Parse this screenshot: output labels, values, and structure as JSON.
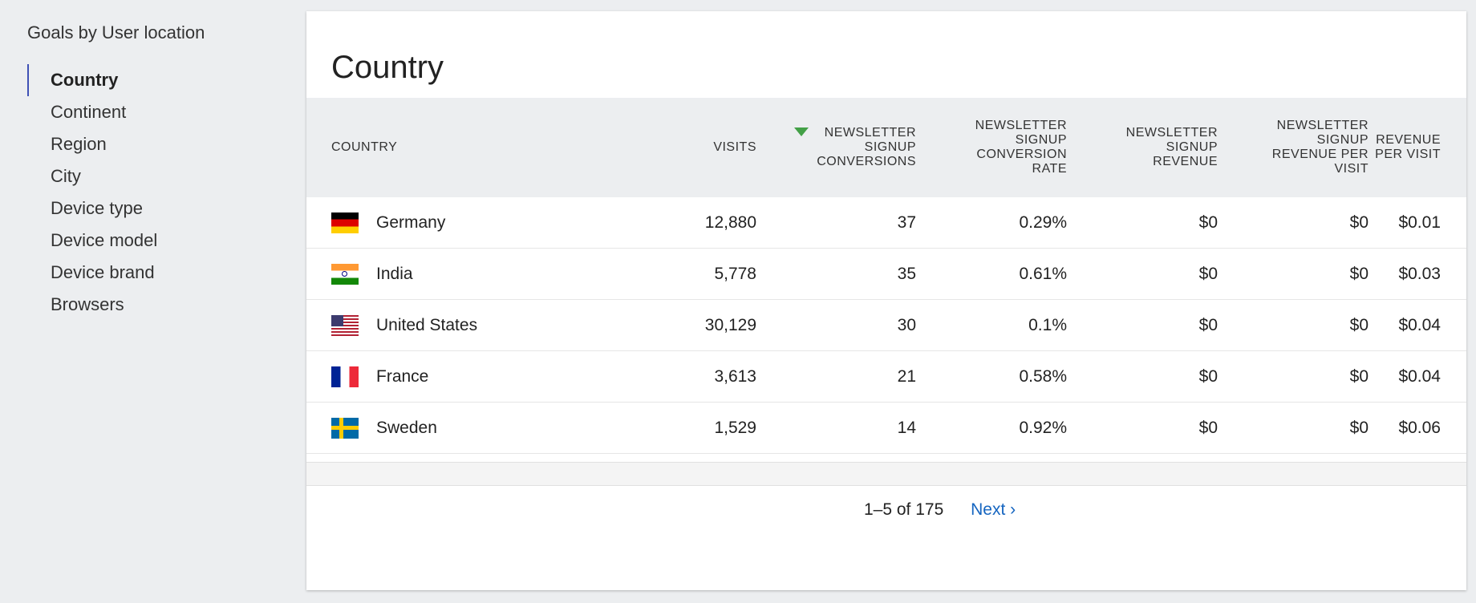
{
  "sidebar": {
    "title": "Goals by User location",
    "items": [
      {
        "label": "Country"
      },
      {
        "label": "Continent"
      },
      {
        "label": "Region"
      },
      {
        "label": "City"
      },
      {
        "label": "Device type"
      },
      {
        "label": "Device model"
      },
      {
        "label": "Device brand"
      },
      {
        "label": "Browsers"
      }
    ]
  },
  "report": {
    "title": "Country",
    "columns": [
      "Country",
      "Visits",
      "Newsletter Signup Conversions",
      "Newsletter Signup Conversion Rate",
      "Newsletter Signup Revenue",
      "Newsletter Signup Revenue per Visit",
      "Revenue per Visit"
    ],
    "sorted_column_color": "#43a047",
    "rows": [
      {
        "flag": "germany-flag-icon",
        "country": "Germany",
        "visits": "12,880",
        "conversions": "37",
        "conv_rate": "0.29%",
        "revenue": "$0",
        "revenue_per_visit": "$0",
        "rev_per_visit": "$0.01"
      },
      {
        "flag": "india-flag-icon",
        "country": "India",
        "visits": "5,778",
        "conversions": "35",
        "conv_rate": "0.61%",
        "revenue": "$0",
        "revenue_per_visit": "$0",
        "rev_per_visit": "$0.03"
      },
      {
        "flag": "united-states-flag-icon",
        "country": "United States",
        "visits": "30,129",
        "conversions": "30",
        "conv_rate": "0.1%",
        "revenue": "$0",
        "revenue_per_visit": "$0",
        "rev_per_visit": "$0.04"
      },
      {
        "flag": "france-flag-icon",
        "country": "France",
        "visits": "3,613",
        "conversions": "21",
        "conv_rate": "0.58%",
        "revenue": "$0",
        "revenue_per_visit": "$0",
        "rev_per_visit": "$0.04"
      },
      {
        "flag": "sweden-flag-icon",
        "country": "Sweden",
        "visits": "1,529",
        "conversions": "14",
        "conv_rate": "0.92%",
        "revenue": "$0",
        "revenue_per_visit": "$0",
        "rev_per_visit": "$0.06"
      }
    ],
    "pagination": {
      "count": "1–5 of 175",
      "next_label": "Next ›"
    }
  }
}
